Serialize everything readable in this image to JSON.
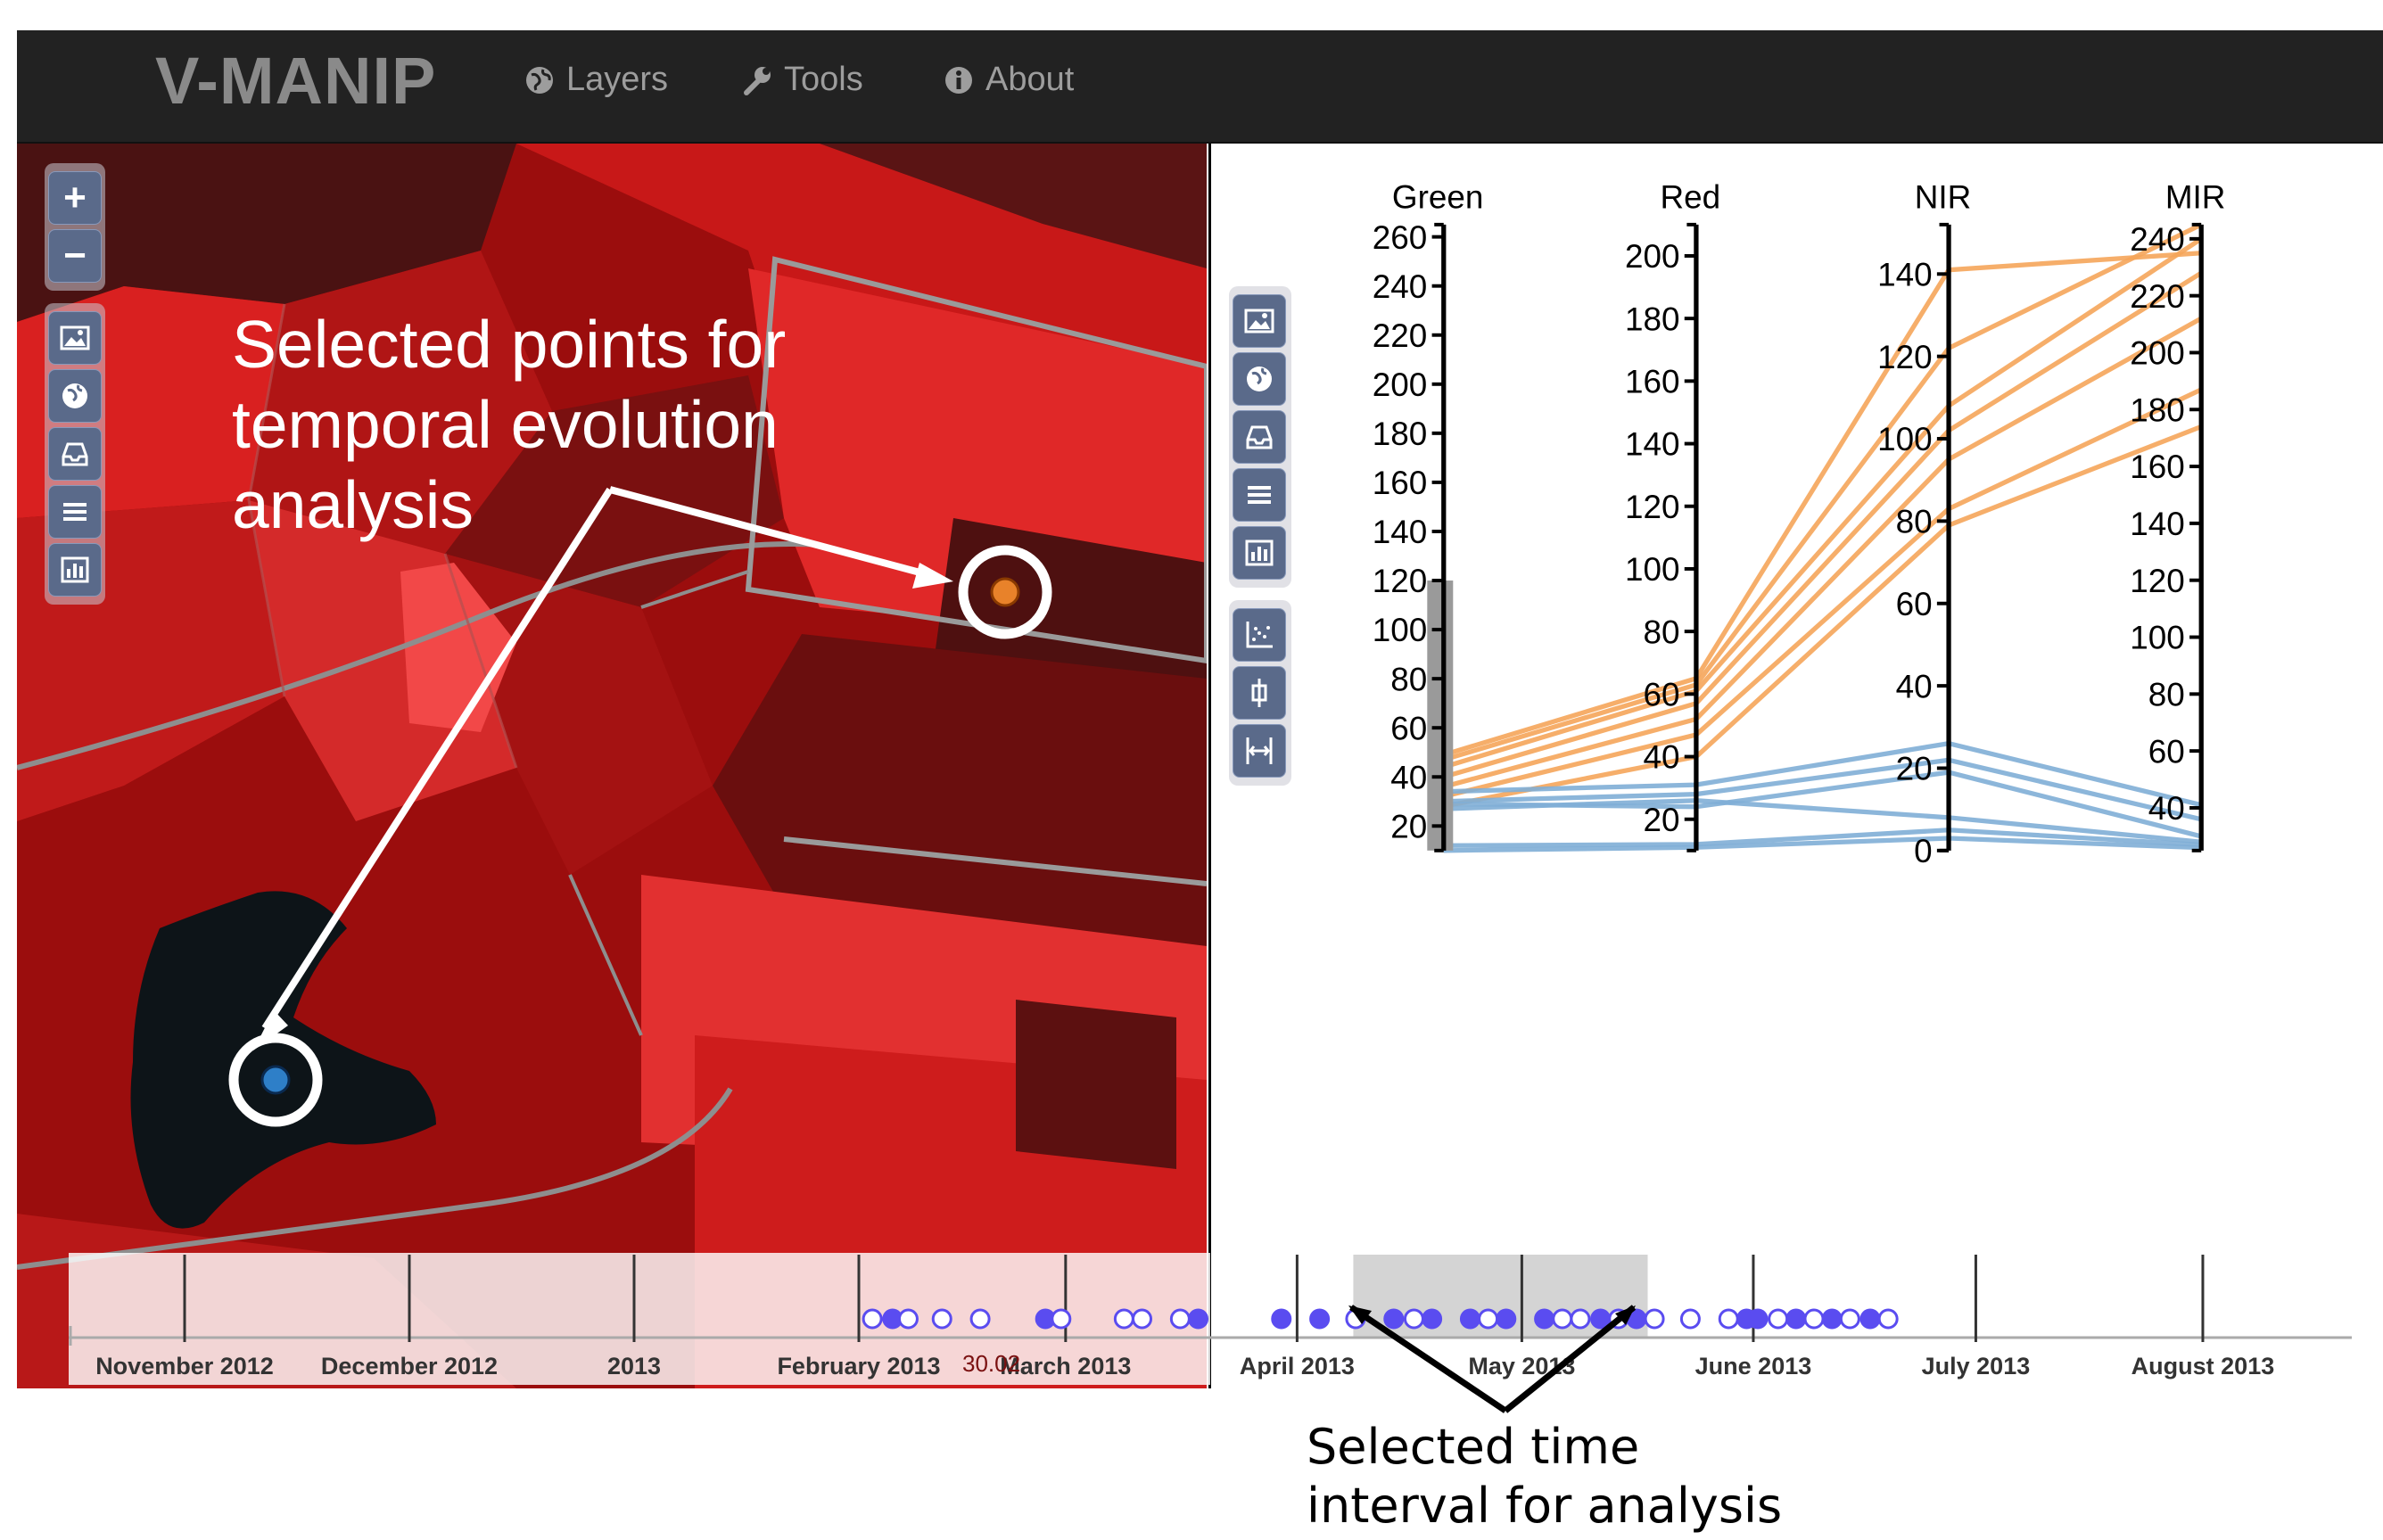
{
  "navbar": {
    "brand": "V-MANIP",
    "items": [
      {
        "label": "Layers",
        "icon": "globe-icon"
      },
      {
        "label": "Tools",
        "icon": "wrench-icon"
      },
      {
        "label": "About",
        "icon": "info-icon"
      }
    ]
  },
  "map": {
    "zoom_in": "+",
    "zoom_out": "−",
    "toolbar_icons": [
      "image-icon",
      "globe-icon",
      "inbox-icon",
      "list-icon",
      "bar-chart-icon"
    ],
    "annotation": "Selected points for\ntemporal evolution\nanalysis",
    "point_colors": {
      "orange": "#e8822a",
      "blue": "#2e7fc8"
    }
  },
  "chart_toolbar": {
    "icons": [
      "image-icon",
      "globe-icon",
      "inbox-icon",
      "list-icon",
      "bar-chart-icon",
      "scatter-icon",
      "brush-icon",
      "axis-resize-icon"
    ]
  },
  "chart_data": {
    "type": "parallel-coordinates",
    "axes": [
      {
        "name": "Green",
        "ticks": [
          20,
          40,
          60,
          80,
          100,
          120,
          140,
          160,
          180,
          200,
          220,
          240,
          260
        ],
        "range": [
          10,
          265
        ]
      },
      {
        "name": "Red",
        "ticks": [
          20,
          40,
          60,
          80,
          100,
          120,
          140,
          160,
          180,
          200
        ],
        "range": [
          10,
          210
        ]
      },
      {
        "name": "NIR",
        "ticks": [
          0,
          20,
          40,
          60,
          80,
          100,
          120,
          140
        ],
        "range": [
          0,
          152
        ]
      },
      {
        "name": "MIR",
        "ticks": [
          40,
          60,
          80,
          100,
          120,
          140,
          160,
          180,
          200,
          220,
          240
        ],
        "range": [
          25,
          245
        ]
      }
    ],
    "brush": {
      "axis": "Green",
      "range": [
        10,
        120
      ]
    },
    "series": [
      {
        "group": "orange",
        "values": [
          49,
          65,
          141,
          235
        ]
      },
      {
        "group": "orange",
        "values": [
          47,
          63,
          122,
          245
        ]
      },
      {
        "group": "orange",
        "values": [
          44,
          61,
          108,
          240
        ]
      },
      {
        "group": "orange",
        "values": [
          40,
          57,
          102,
          228
        ]
      },
      {
        "group": "orange",
        "values": [
          36,
          52,
          95,
          212
        ]
      },
      {
        "group": "orange",
        "values": [
          32,
          47,
          83,
          187
        ]
      },
      {
        "group": "orange",
        "values": [
          28,
          40,
          79,
          174
        ]
      },
      {
        "group": "blue",
        "values": [
          34,
          31,
          26,
          41
        ]
      },
      {
        "group": "blue",
        "values": [
          30,
          28,
          22,
          36
        ]
      },
      {
        "group": "blue",
        "values": [
          29,
          24,
          19,
          30
        ]
      },
      {
        "group": "blue",
        "values": [
          27,
          26,
          8,
          28
        ]
      },
      {
        "group": "blue",
        "values": [
          12,
          12,
          5,
          27
        ]
      },
      {
        "group": "blue",
        "values": [
          10,
          11,
          3,
          26
        ]
      }
    ],
    "colors": {
      "orange": "#f5a55a",
      "blue": "#7faed6",
      "axis": "#000000",
      "brush": "#9a9a9a"
    }
  },
  "timeline": {
    "months": [
      "November 2012",
      "December 2012",
      "2013",
      "February 2013",
      "March 2013",
      "April 2013",
      "May 2013",
      "June 2013",
      "July 2013",
      "August 2013"
    ],
    "month_positions": [
      0.0,
      1.0,
      2.0,
      3.0,
      3.92,
      4.95,
      5.95,
      6.98,
      7.97,
      8.98
    ],
    "selected_range": [
      5.2,
      6.51
    ],
    "points": [
      {
        "t": 3.06,
        "filled": false
      },
      {
        "t": 3.15,
        "filled": true
      },
      {
        "t": 3.22,
        "filled": false
      },
      {
        "t": 3.37,
        "filled": false
      },
      {
        "t": 3.54,
        "filled": false
      },
      {
        "t": 3.83,
        "filled": true
      },
      {
        "t": 3.9,
        "filled": false
      },
      {
        "t": 4.18,
        "filled": false
      },
      {
        "t": 4.26,
        "filled": false
      },
      {
        "t": 4.43,
        "filled": false
      },
      {
        "t": 4.51,
        "filled": true
      },
      {
        "t": 4.88,
        "filled": true
      },
      {
        "t": 5.05,
        "filled": true
      },
      {
        "t": 5.21,
        "filled": false
      },
      {
        "t": 5.38,
        "filled": true
      },
      {
        "t": 5.47,
        "filled": false
      },
      {
        "t": 5.55,
        "filled": true
      },
      {
        "t": 5.72,
        "filled": true
      },
      {
        "t": 5.8,
        "filled": false
      },
      {
        "t": 5.88,
        "filled": true
      },
      {
        "t": 6.05,
        "filled": true
      },
      {
        "t": 6.13,
        "filled": false
      },
      {
        "t": 6.21,
        "filled": false
      },
      {
        "t": 6.3,
        "filled": true
      },
      {
        "t": 6.38,
        "filled": false
      },
      {
        "t": 6.46,
        "filled": true
      },
      {
        "t": 6.54,
        "filled": false
      },
      {
        "t": 6.7,
        "filled": false
      },
      {
        "t": 6.87,
        "filled": false
      },
      {
        "t": 6.95,
        "filled": true
      },
      {
        "t": 7.0,
        "filled": true
      },
      {
        "t": 7.09,
        "filled": false
      },
      {
        "t": 7.17,
        "filled": true
      },
      {
        "t": 7.25,
        "filled": false
      },
      {
        "t": 7.33,
        "filled": true
      },
      {
        "t": 7.41,
        "filled": false
      },
      {
        "t": 7.5,
        "filled": true
      },
      {
        "t": 7.58,
        "filled": false
      }
    ],
    "point_color": "#5a4cf0",
    "scale_readout": "30.02"
  },
  "annotations": {
    "bottom_line1": "Selected time",
    "bottom_line2": "interval for analysis"
  }
}
